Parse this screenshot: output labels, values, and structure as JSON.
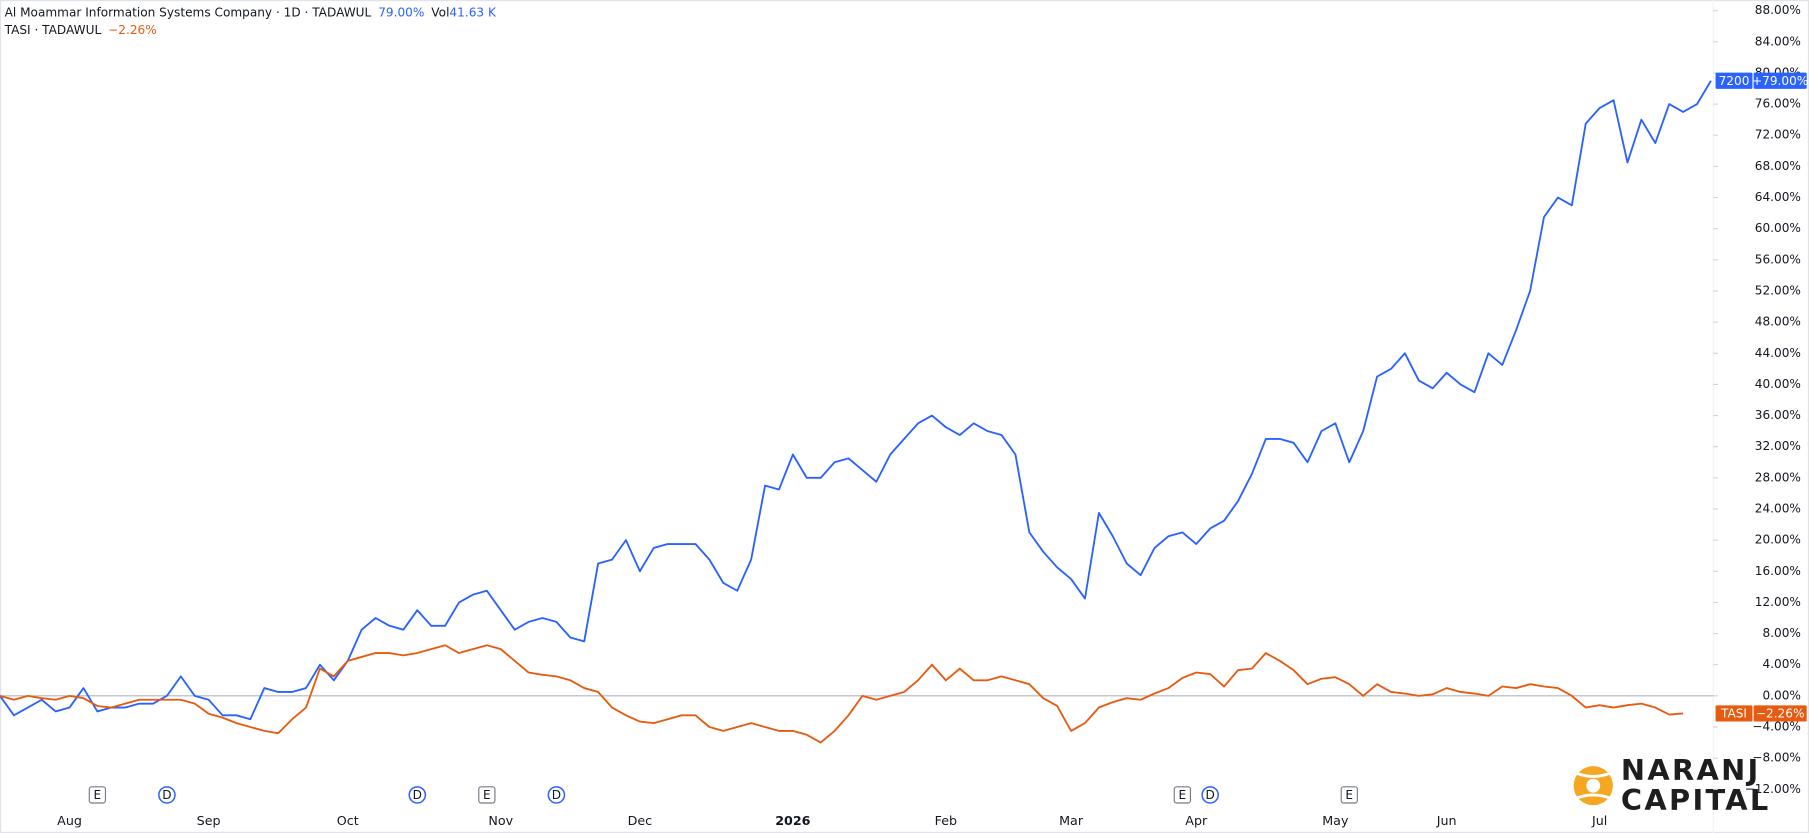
{
  "chart_data": {
    "type": "line",
    "header": {
      "series0_name": "Al Moammar Information Systems Company · 1D · TADAWUL",
      "series0_change": "79.00%",
      "volume_label": "Vol",
      "volume_value": "41.63 K",
      "series1_name": "TASI · TADAWUL",
      "series1_change": "−2.26%"
    },
    "categories": [
      null,
      null,
      null,
      null,
      null,
      "Aug",
      null,
      null,
      null,
      null,
      null,
      null,
      null,
      null,
      null,
      "Sep",
      null,
      null,
      null,
      null,
      null,
      null,
      null,
      null,
      null,
      "Oct",
      null,
      null,
      null,
      null,
      null,
      null,
      null,
      null,
      null,
      null,
      "Nov",
      null,
      null,
      null,
      null,
      null,
      null,
      null,
      null,
      null,
      "Dec",
      null,
      null,
      null,
      null,
      null,
      null,
      null,
      null,
      null,
      null,
      "2026",
      null,
      null,
      null,
      null,
      null,
      null,
      null,
      null,
      null,
      null,
      "Feb",
      null,
      null,
      null,
      null,
      null,
      null,
      null,
      null,
      "Mar",
      null,
      null,
      null,
      null,
      null,
      null,
      null,
      null,
      "Apr",
      null,
      null,
      null,
      null,
      null,
      null,
      null,
      null,
      null,
      "May",
      null,
      null,
      null,
      null,
      null,
      null,
      null,
      "Jun",
      null,
      null,
      null,
      null,
      null,
      null,
      null,
      null,
      null,
      null,
      "Jul",
      null,
      null,
      null,
      null,
      null,
      null,
      null,
      null
    ],
    "series": [
      {
        "name": "7200",
        "color": "#2962ff",
        "last_label": "+79.00%",
        "values": [
          0,
          -2.5,
          -1.5,
          -0.5,
          -2,
          -1.5,
          1,
          -2,
          -1.5,
          -1.5,
          -1,
          -1,
          0,
          2.5,
          0,
          -0.5,
          -2.5,
          -2.5,
          -3,
          1,
          0.5,
          0.5,
          1,
          4,
          2,
          4.5,
          8.5,
          10,
          9,
          8.5,
          11,
          9,
          9,
          12,
          13,
          13.5,
          11,
          8.5,
          9.5,
          10,
          9.5,
          7.5,
          7,
          17,
          17.5,
          20,
          16,
          19,
          19.5,
          19.5,
          19.5,
          17.5,
          14.5,
          13.5,
          17.5,
          27,
          26.5,
          31,
          28,
          28,
          30,
          30.5,
          29,
          27.5,
          31,
          33,
          35,
          36,
          34.5,
          33.5,
          35,
          34,
          33.5,
          31,
          21,
          18.5,
          16.5,
          15,
          12.5,
          23.5,
          20.5,
          17,
          15.5,
          19,
          20.5,
          21,
          19.5,
          21.5,
          22.5,
          25,
          28.5,
          33,
          33,
          32.5,
          30,
          34,
          35,
          30,
          34,
          41,
          42,
          44,
          40.5,
          39.5,
          41.5,
          40,
          39,
          44,
          42.5,
          47,
          52,
          61.5,
          64,
          63,
          73.5,
          75.5,
          76.5,
          68.5,
          74,
          71,
          76,
          75,
          76,
          79
        ]
      },
      {
        "name": "TASI",
        "color": "#e65b0f",
        "last_label": "−2.26%",
        "values": [
          0,
          -0.5,
          0,
          -0.3,
          -0.5,
          0,
          -0.3,
          -1.3,
          -1.5,
          -1,
          -0.5,
          -0.5,
          -0.5,
          -0.5,
          -1,
          -2.3,
          -2.8,
          -3.5,
          -4,
          -4.5,
          -4.8,
          -3,
          -1.5,
          3.5,
          2.5,
          4.5,
          5,
          5.5,
          5.5,
          5.2,
          5.5,
          6,
          6.5,
          5.5,
          6,
          6.5,
          6,
          4.5,
          3,
          2.7,
          2.5,
          2,
          1,
          0.5,
          -1.5,
          -2.5,
          -3.3,
          -3.5,
          -3,
          -2.5,
          -2.5,
          -4,
          -4.5,
          -4,
          -3.5,
          -4,
          -4.5,
          -4.5,
          -5,
          -6,
          -4.5,
          -2.5,
          0,
          -0.5,
          0,
          0.5,
          2,
          4,
          2,
          3.5,
          2,
          2,
          2.5,
          2,
          1.5,
          -0.3,
          -1.3,
          -4.5,
          -3.5,
          -1.5,
          -0.8,
          -0.3,
          -0.5,
          0.3,
          1,
          2.3,
          3,
          2.8,
          1.2,
          3.3,
          3.5,
          5.5,
          4.5,
          3.3,
          1.5,
          2.2,
          2.4,
          1.5,
          0,
          1.5,
          0.5,
          0.3,
          0,
          0.2,
          1,
          0.5,
          0.3,
          0,
          1.2,
          1,
          1.5,
          1.2,
          1,
          0,
          -1.5,
          -1.2,
          -1.5,
          -1.2,
          -1,
          -1.5,
          -2.4,
          -2.26,
          null,
          null
        ]
      }
    ],
    "ylim": [
      -14.5,
      89
    ],
    "yticks": [
      {
        "value": 88,
        "label": "88.00%"
      },
      {
        "value": 84,
        "label": "84.00%"
      },
      {
        "value": 80,
        "label": "80.00%"
      },
      {
        "value": 76,
        "label": "76.00%"
      },
      {
        "value": 72,
        "label": "72.00%"
      },
      {
        "value": 68,
        "label": "68.00%"
      },
      {
        "value": 64,
        "label": "64.00%"
      },
      {
        "value": 60,
        "label": "60.00%"
      },
      {
        "value": 56,
        "label": "56.00%"
      },
      {
        "value": 52,
        "label": "52.00%"
      },
      {
        "value": 48,
        "label": "48.00%"
      },
      {
        "value": 44,
        "label": "44.00%"
      },
      {
        "value": 40,
        "label": "40.00%"
      },
      {
        "value": 36,
        "label": "36.00%"
      },
      {
        "value": 32,
        "label": "32.00%"
      },
      {
        "value": 28,
        "label": "28.00%"
      },
      {
        "value": 24,
        "label": "24.00%"
      },
      {
        "value": 20,
        "label": "20.00%"
      },
      {
        "value": 16,
        "label": "16.00%"
      },
      {
        "value": 12,
        "label": "12.00%"
      },
      {
        "value": 8,
        "label": "8.00%"
      },
      {
        "value": 4,
        "label": "4.00%"
      },
      {
        "value": 0,
        "label": "0.00%"
      },
      {
        "value": -4,
        "label": "−4.00%"
      },
      {
        "value": -8,
        "label": "−8.00%"
      },
      {
        "value": -12,
        "label": "−12.00%"
      }
    ],
    "zero_line": true,
    "events": [
      {
        "label": "E",
        "index": 7
      },
      {
        "label": "D",
        "index": 12
      },
      {
        "label": "D",
        "index": 30
      },
      {
        "label": "E",
        "index": 35
      },
      {
        "label": "D",
        "index": 40
      },
      {
        "label": "E",
        "index": 85
      },
      {
        "label": "D",
        "index": 87
      },
      {
        "label": "E",
        "index": 97
      }
    ],
    "logo": {
      "line1": "NARANJ",
      "line2": "CAPITAL"
    }
  }
}
